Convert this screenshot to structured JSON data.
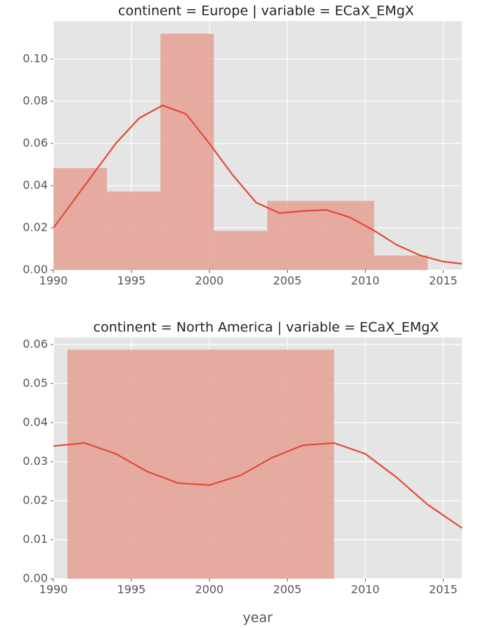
{
  "chart_data": [
    {
      "type": "histogram",
      "title": "continent = Europe | variable = ECaX_EMgX",
      "bins": [
        1990,
        1993.43,
        1996.86,
        2000.29,
        2003.71,
        2007.14,
        2010.57,
        2014
      ],
      "counts": [
        0.0483,
        0.0372,
        0.112,
        0.0186,
        0.0328,
        0.0328,
        0.0069
      ],
      "color": "#e5a195",
      "kde": {
        "color": "#e24a33",
        "x": [
          1990,
          1992,
          1994,
          1995.5,
          1997,
          1998.5,
          2000,
          2001.5,
          2003,
          2004.5,
          2006,
          2007.5,
          2009,
          2010.5,
          2012,
          2013.5,
          2015,
          2016.2
        ],
        "values": [
          0.02,
          0.04,
          0.06,
          0.072,
          0.078,
          0.074,
          0.06,
          0.045,
          0.032,
          0.027,
          0.028,
          0.0285,
          0.025,
          0.019,
          0.012,
          0.007,
          0.004,
          0.003
        ]
      },
      "xlim": [
        1990,
        2016.2
      ],
      "ylim": [
        0,
        0.118
      ],
      "xticks": [
        1990,
        1995,
        2000,
        2005,
        2010,
        2015
      ],
      "yticks": [
        {
          "value": 0,
          "label": "0.00"
        },
        {
          "value": 0.02,
          "label": "0.02"
        },
        {
          "value": 0.04,
          "label": "0.04"
        },
        {
          "value": 0.06,
          "label": "0.06"
        },
        {
          "value": 0.08,
          "label": "0.08"
        },
        {
          "value": 0.1,
          "label": "0.10"
        }
      ],
      "grid": true
    },
    {
      "type": "histogram",
      "title": "continent = North America | variable = ECaX_EMgX",
      "bins": [
        1990.9,
        2008.0
      ],
      "counts": [
        0.0587
      ],
      "color": "#e5a195",
      "kde": {
        "color": "#e24a33",
        "x": [
          1990,
          1992,
          1994,
          1996,
          1998,
          2000,
          2002,
          2004,
          2006,
          2008,
          2010,
          2012,
          2014,
          2016.2
        ],
        "values": [
          0.034,
          0.0348,
          0.032,
          0.0275,
          0.0245,
          0.024,
          0.0265,
          0.031,
          0.0342,
          0.0348,
          0.032,
          0.026,
          0.019,
          0.013
        ]
      },
      "xlim": [
        1990,
        2016.2
      ],
      "ylim": [
        0,
        0.0618
      ],
      "xticks": [
        1990,
        1995,
        2000,
        2005,
        2010,
        2015
      ],
      "yticks": [
        {
          "value": 0,
          "label": "0.00"
        },
        {
          "value": 0.01,
          "label": "0.01"
        },
        {
          "value": 0.02,
          "label": "0.02"
        },
        {
          "value": 0.03,
          "label": "0.03"
        },
        {
          "value": 0.04,
          "label": "0.04"
        },
        {
          "value": 0.05,
          "label": "0.05"
        },
        {
          "value": 0.06,
          "label": "0.06"
        }
      ],
      "xlabel": "year",
      "grid": true
    }
  ]
}
